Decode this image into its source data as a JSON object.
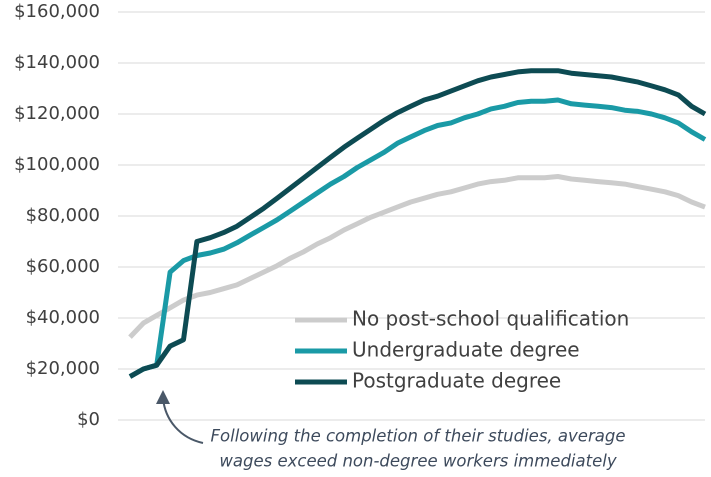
{
  "chart_data": {
    "type": "line",
    "categories": [
      null,
      null,
      null,
      null,
      null,
      null,
      null,
      null,
      null,
      null,
      null,
      null,
      null,
      null,
      null,
      null,
      null,
      null,
      null,
      null,
      null,
      null,
      null,
      null,
      null,
      null,
      null,
      null,
      null,
      null,
      null,
      null,
      null,
      null,
      null,
      null,
      null,
      null,
      null,
      null,
      null,
      null,
      null,
      null
    ],
    "series": [
      {
        "name": "No post-school qualification",
        "color": "#cccccc",
        "values": [
          32500,
          38000,
          41000,
          44000,
          47000,
          49000,
          50000,
          51500,
          53000,
          55500,
          58000,
          60500,
          63500,
          66000,
          69000,
          71500,
          74500,
          77000,
          79500,
          81500,
          83500,
          85500,
          87000,
          88500,
          89500,
          91000,
          92500,
          93500,
          94000,
          95000,
          95000,
          95000,
          95500,
          94500,
          94000,
          93500,
          93000,
          92500,
          91500,
          90500,
          89500,
          88000,
          85500,
          83500
        ]
      },
      {
        "name": "Undergraduate degree",
        "color": "#1a9aa6",
        "values": [
          17000,
          20000,
          21500,
          58000,
          62500,
          64500,
          65500,
          67000,
          69500,
          72500,
          75500,
          78500,
          82000,
          85500,
          89000,
          92500,
          95500,
          99000,
          102000,
          105000,
          108500,
          111000,
          113500,
          115500,
          116500,
          118500,
          120000,
          122000,
          123000,
          124500,
          125000,
          125000,
          125500,
          124000,
          123500,
          123000,
          122500,
          121500,
          121000,
          120000,
          118500,
          116500,
          113000,
          110000
        ]
      },
      {
        "name": "Postgraduate degree",
        "color": "#0d4b53",
        "values": [
          17000,
          20000,
          21500,
          29000,
          31500,
          70000,
          71500,
          73500,
          76000,
          79500,
          83000,
          87000,
          91000,
          95000,
          99000,
          103000,
          107000,
          110500,
          114000,
          117500,
          120500,
          123000,
          125500,
          127000,
          129000,
          131000,
          133000,
          134500,
          135500,
          136500,
          137000,
          137000,
          137000,
          136000,
          135500,
          135000,
          134500,
          133500,
          132500,
          131000,
          129500,
          127500,
          123000,
          120000
        ]
      }
    ],
    "ylim": [
      0,
      160000
    ],
    "yticks": [
      {
        "value": 0,
        "label": "$0"
      },
      {
        "value": 20000,
        "label": "$20,000"
      },
      {
        "value": 40000,
        "label": "$40,000"
      },
      {
        "value": 60000,
        "label": "$60,000"
      },
      {
        "value": 80000,
        "label": "$80,000"
      },
      {
        "value": 100000,
        "label": "$100,000"
      },
      {
        "value": 120000,
        "label": "$120,000"
      },
      {
        "value": 140000,
        "label": "$140,000"
      },
      {
        "value": 160000,
        "label": "$160,000"
      }
    ],
    "grid": true,
    "annotation": [
      "Following the completion of their studies, average",
      "wages exceed non-degree workers immediately"
    ]
  }
}
